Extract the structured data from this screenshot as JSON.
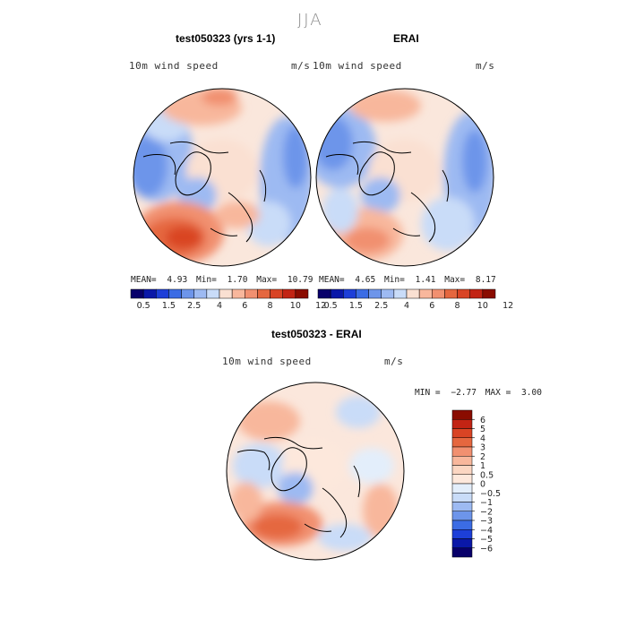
{
  "suptitle": "JJA",
  "colors": {
    "abs_scale": [
      "#08006a",
      "#0a18a8",
      "#1d3fd8",
      "#3b6ce4",
      "#6d95ea",
      "#9dbaf2",
      "#c9dcf8",
      "#fae0d2",
      "#f8b79c",
      "#f19070",
      "#e5673f",
      "#d94424",
      "#c22414",
      "#8a0c00"
    ],
    "diff_scale": [
      "#8a0c00",
      "#c22414",
      "#d94424",
      "#e5673f",
      "#f19070",
      "#f8b79c",
      "#fbd6c2",
      "#fde8dc",
      "#e3eefb",
      "#c9dcf8",
      "#9dbaf2",
      "#6d95ea",
      "#3b6ce4",
      "#1d3fd8",
      "#0a18a8",
      "#08006a"
    ]
  },
  "panels": [
    {
      "title": "test050323 (yrs 1-1)",
      "variable": "10m wind speed",
      "units": "m/s",
      "mean_label": "MEAN=",
      "mean": "4.93",
      "min_label": "Min=",
      "min": "1.70",
      "max_label": "Max=",
      "max": "10.79"
    },
    {
      "title": "ERAI",
      "variable": "10m wind speed",
      "units": "m/s",
      "mean_label": "MEAN=",
      "mean": "4.65",
      "min_label": "Min=",
      "min": "1.41",
      "max_label": "Max=",
      "max": "8.17"
    },
    {
      "title": "test050323 - ERAI",
      "variable": "10m wind speed",
      "units": "m/s",
      "min_label": "MIN =",
      "min": "−2.77",
      "max_label": "MAX =",
      "max": "3.00"
    }
  ],
  "abs_colorbar_ticks": [
    "0.5",
    "1.5",
    "2.5",
    "4",
    "6",
    "8",
    "10",
    "12"
  ],
  "diff_colorbar_ticks": [
    "6",
    "5",
    "4",
    "3",
    "2",
    "1",
    "0.5",
    "0",
    "−0.5",
    "−1",
    "−2",
    "−3",
    "−4",
    "−5",
    "−6"
  ],
  "chart_data": [
    {
      "type": "heatmap",
      "title": "test050323 (yrs 1-1)",
      "variable": "10m wind speed",
      "units": "m/s",
      "projection": "north polar stereographic",
      "season": "JJA",
      "stats": {
        "mean": 4.93,
        "min": 1.7,
        "max": 10.79
      },
      "color_levels": [
        0.5,
        1.5,
        2.5,
        4,
        6,
        8,
        10,
        12
      ]
    },
    {
      "type": "heatmap",
      "title": "ERAI",
      "variable": "10m wind speed",
      "units": "m/s",
      "projection": "north polar stereographic",
      "season": "JJA",
      "stats": {
        "mean": 4.65,
        "min": 1.41,
        "max": 8.17
      },
      "color_levels": [
        0.5,
        1.5,
        2.5,
        4,
        6,
        8,
        10,
        12
      ]
    },
    {
      "type": "heatmap",
      "title": "test050323 - ERAI",
      "variable": "10m wind speed",
      "units": "m/s",
      "projection": "north polar stereographic",
      "season": "JJA",
      "stats": {
        "min": -2.77,
        "max": 3.0
      },
      "color_levels": [
        6,
        5,
        4,
        3,
        2,
        1,
        0.5,
        0,
        -0.5,
        -1,
        -2,
        -3,
        -4,
        -5,
        -6
      ]
    }
  ]
}
